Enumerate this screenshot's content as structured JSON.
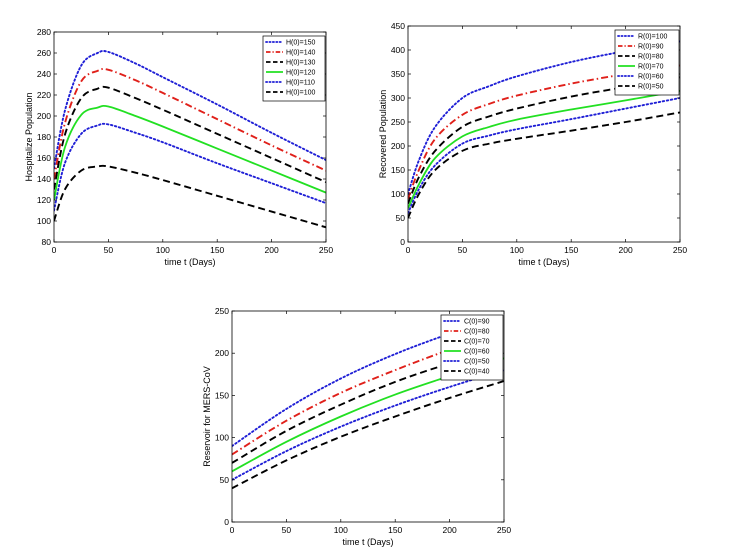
{
  "colors": {
    "blue": "#1f1fd6",
    "red": "#e0201a",
    "green": "#22e022",
    "black": "#000000"
  },
  "chart_data": [
    {
      "type": "line",
      "xlabel": "time t (Days)",
      "ylabel": "Hospitalize Population",
      "xlim": [
        0,
        250
      ],
      "ylim": [
        80,
        280
      ],
      "xticks": [
        0,
        50,
        100,
        150,
        200,
        250
      ],
      "yticks": [
        80,
        100,
        120,
        140,
        160,
        180,
        200,
        220,
        240,
        260,
        280
      ],
      "legend_position": "top-right",
      "series": [
        {
          "name": "H(0)=150",
          "color": "blue",
          "style": "dotted",
          "x": [
            0,
            10,
            25,
            40,
            50,
            75,
            100,
            150,
            200,
            250
          ],
          "values": [
            150,
            205,
            248,
            260,
            261,
            250,
            237,
            211,
            184,
            158
          ]
        },
        {
          "name": "H(0)=140",
          "color": "red",
          "style": "dashdot",
          "x": [
            0,
            10,
            25,
            40,
            50,
            75,
            100,
            150,
            200,
            250
          ],
          "values": [
            140,
            193,
            233,
            243,
            244,
            234,
            222,
            197,
            172,
            148
          ]
        },
        {
          "name": "H(0)=130",
          "color": "black",
          "style": "dashed",
          "x": [
            0,
            10,
            25,
            40,
            50,
            75,
            100,
            150,
            200,
            250
          ],
          "values": [
            130,
            182,
            217,
            226,
            227,
            217,
            206,
            183,
            160,
            137
          ]
        },
        {
          "name": "H(0)=120",
          "color": "green",
          "style": "solid",
          "x": [
            0,
            10,
            25,
            40,
            50,
            75,
            100,
            150,
            200,
            250
          ],
          "values": [
            120,
            170,
            201,
            208,
            209,
            200,
            190,
            169,
            148,
            127
          ]
        },
        {
          "name": "H(0)=110",
          "color": "blue",
          "style": "dotted",
          "x": [
            0,
            10,
            25,
            40,
            50,
            75,
            100,
            150,
            200,
            250
          ],
          "values": [
            110,
            155,
            183,
            191,
            192,
            184,
            175,
            155,
            136,
            117
          ]
        },
        {
          "name": "H(0)=100",
          "color": "black",
          "style": "dashed",
          "x": [
            0,
            10,
            25,
            40,
            50,
            75,
            100,
            150,
            200,
            250
          ],
          "values": [
            100,
            130,
            148,
            152,
            152,
            146,
            139,
            124,
            109,
            94
          ]
        }
      ]
    },
    {
      "type": "line",
      "xlabel": "time t (Days)",
      "ylabel": "Recovered Population",
      "xlim": [
        0,
        250
      ],
      "ylim": [
        0,
        450
      ],
      "xticks": [
        0,
        50,
        100,
        150,
        200,
        250
      ],
      "yticks": [
        0,
        50,
        100,
        150,
        200,
        250,
        300,
        350,
        400,
        450
      ],
      "legend_position": "top-right",
      "series": [
        {
          "name": "R(0)=100",
          "color": "blue",
          "style": "dotted",
          "x": [
            0,
            10,
            25,
            50,
            75,
            100,
            150,
            200,
            250
          ],
          "values": [
            100,
            170,
            240,
            300,
            325,
            345,
            375,
            398,
            418
          ]
        },
        {
          "name": "R(0)=90",
          "color": "red",
          "style": "dashdot",
          "x": [
            0,
            10,
            25,
            50,
            75,
            100,
            150,
            200,
            250
          ],
          "values": [
            90,
            150,
            215,
            265,
            288,
            305,
            330,
            350,
            368
          ]
        },
        {
          "name": "R(0)=80",
          "color": "black",
          "style": "dashed",
          "x": [
            0,
            10,
            25,
            50,
            75,
            100,
            150,
            200,
            250
          ],
          "values": [
            80,
            135,
            190,
            240,
            262,
            278,
            303,
            323,
            343
          ]
        },
        {
          "name": "R(0)=70",
          "color": "green",
          "style": "solid",
          "x": [
            0,
            10,
            25,
            50,
            75,
            100,
            150,
            200,
            250
          ],
          "values": [
            70,
            120,
            175,
            220,
            240,
            255,
            276,
            295,
            315
          ]
        },
        {
          "name": "R(0)=60",
          "color": "blue",
          "style": "dotted",
          "x": [
            0,
            10,
            25,
            50,
            75,
            100,
            150,
            200,
            250
          ],
          "values": [
            60,
            110,
            160,
            205,
            222,
            235,
            256,
            278,
            300
          ]
        },
        {
          "name": "R(0)=50",
          "color": "black",
          "style": "dashed",
          "x": [
            0,
            10,
            25,
            50,
            75,
            100,
            150,
            200,
            250
          ],
          "values": [
            50,
            100,
            150,
            190,
            205,
            215,
            232,
            250,
            270
          ]
        }
      ]
    },
    {
      "type": "line",
      "xlabel": "time t (Days)",
      "ylabel": "Reservoir for MERS-CoV",
      "xlim": [
        0,
        250
      ],
      "ylim": [
        0,
        250
      ],
      "xticks": [
        0,
        50,
        100,
        150,
        200,
        250
      ],
      "yticks": [
        0,
        50,
        100,
        150,
        200,
        250
      ],
      "legend_position": "top-right",
      "series": [
        {
          "name": "C(0)=90",
          "color": "blue",
          "style": "dotted",
          "x": [
            0,
            50,
            100,
            150,
            200,
            250
          ],
          "values": [
            90,
            134,
            170,
            199,
            223,
            243
          ]
        },
        {
          "name": "C(0)=80",
          "color": "red",
          "style": "dashdot",
          "x": [
            0,
            50,
            100,
            150,
            200,
            250
          ],
          "values": [
            80,
            120,
            153,
            180,
            204,
            224
          ]
        },
        {
          "name": "C(0)=70",
          "color": "black",
          "style": "dashed",
          "x": [
            0,
            50,
            100,
            150,
            200,
            250
          ],
          "values": [
            70,
            108,
            139,
            166,
            188,
            208
          ]
        },
        {
          "name": "C(0)=60",
          "color": "green",
          "style": "solid",
          "x": [
            0,
            50,
            100,
            150,
            200,
            250
          ],
          "values": [
            60,
            95,
            125,
            151,
            173,
            194
          ]
        },
        {
          "name": "C(0)=50",
          "color": "blue",
          "style": "dotted",
          "x": [
            0,
            50,
            100,
            150,
            200,
            250
          ],
          "values": [
            50,
            84,
            113,
            138,
            160,
            180
          ]
        },
        {
          "name": "C(0)=40",
          "color": "black",
          "style": "dashed",
          "x": [
            0,
            50,
            100,
            150,
            200,
            250
          ],
          "values": [
            40,
            73,
            101,
            125,
            147,
            167
          ]
        }
      ]
    }
  ]
}
